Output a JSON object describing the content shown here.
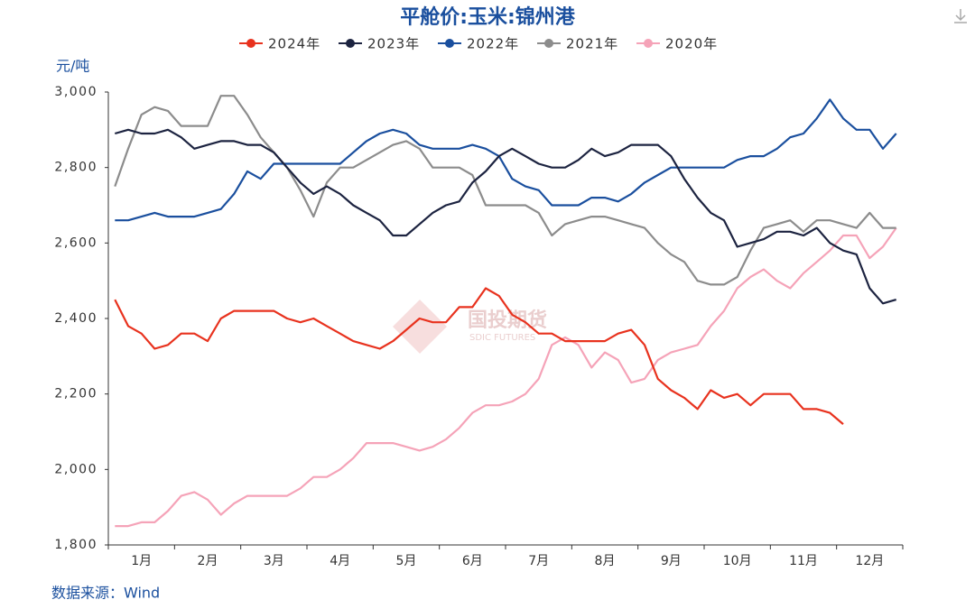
{
  "chart_data": {
    "type": "line",
    "title": "平舱价:玉米:锦州港",
    "y_label": "元/吨",
    "source": "数据来源：Wind",
    "watermark": [
      "国投期货",
      "SDIC FUTURES"
    ],
    "categories": [
      null,
      null,
      "1月",
      null,
      null,
      null,
      null,
      "2月",
      null,
      null,
      null,
      null,
      "3月",
      null,
      null,
      null,
      null,
      "4月",
      null,
      null,
      null,
      null,
      "5月",
      null,
      null,
      null,
      null,
      "6月",
      null,
      null,
      null,
      null,
      "7月",
      null,
      null,
      null,
      null,
      "8月",
      null,
      null,
      null,
      null,
      "9月",
      null,
      null,
      null,
      null,
      "10月",
      null,
      null,
      null,
      null,
      "11月",
      null,
      null,
      null,
      null,
      "12月",
      null,
      null
    ],
    "ylim": [
      1800,
      3000
    ],
    "yticks": [
      {
        "value": 1800,
        "label": "1,800"
      },
      {
        "value": 2000,
        "label": "2,000"
      },
      {
        "value": 2200,
        "label": "2,200"
      },
      {
        "value": 2400,
        "label": "2,400"
      },
      {
        "value": 2600,
        "label": "2,600"
      },
      {
        "value": 2800,
        "label": "2,800"
      },
      {
        "value": 3000,
        "label": "3,000"
      }
    ],
    "series": [
      {
        "name": "2024年",
        "color": "#e8321e",
        "values": [
          2450,
          2380,
          2360,
          2320,
          2330,
          2360,
          2360,
          2340,
          2400,
          2420,
          2420,
          2420,
          2420,
          2400,
          2390,
          2400,
          2380,
          2360,
          2340,
          2330,
          2320,
          2340,
          2370,
          2400,
          2390,
          2390,
          2430,
          2430,
          2480,
          2460,
          2410,
          2390,
          2360,
          2360,
          2340,
          2340,
          2340,
          2340,
          2360,
          2370,
          2330,
          2240,
          2210,
          2190,
          2160,
          2210,
          2190,
          2200,
          2170,
          2200,
          2200,
          2200,
          2160,
          2160,
          2150,
          2120,
          null,
          null,
          null,
          null
        ]
      },
      {
        "name": "2023年",
        "color": "#1c2340",
        "values": [
          2890,
          2900,
          2890,
          2890,
          2900,
          2880,
          2850,
          2860,
          2870,
          2870,
          2860,
          2860,
          2840,
          2800,
          2760,
          2730,
          2750,
          2730,
          2700,
          2680,
          2660,
          2620,
          2620,
          2650,
          2680,
          2700,
          2710,
          2760,
          2790,
          2830,
          2850,
          2830,
          2810,
          2800,
          2800,
          2820,
          2850,
          2830,
          2840,
          2860,
          2860,
          2860,
          2830,
          2770,
          2720,
          2680,
          2660,
          2590,
          2600,
          2610,
          2630,
          2630,
          2620,
          2640,
          2600,
          2580,
          2570,
          2480,
          2440,
          2450
        ]
      },
      {
        "name": "2022年",
        "color": "#1a4f9e",
        "values": [
          2660,
          2660,
          2670,
          2680,
          2670,
          2670,
          2670,
          2680,
          2690,
          2730,
          2790,
          2770,
          2810,
          2810,
          2810,
          2810,
          2810,
          2810,
          2840,
          2870,
          2890,
          2900,
          2890,
          2860,
          2850,
          2850,
          2850,
          2860,
          2850,
          2830,
          2770,
          2750,
          2740,
          2700,
          2700,
          2700,
          2720,
          2720,
          2710,
          2730,
          2760,
          2780,
          2800,
          2800,
          2800,
          2800,
          2800,
          2820,
          2830,
          2830,
          2850,
          2880,
          2890,
          2930,
          2980,
          2930,
          2900,
          2900,
          2850,
          2890
        ]
      },
      {
        "name": "2021年",
        "color": "#8c8c8c",
        "values": [
          2750,
          2850,
          2940,
          2960,
          2950,
          2910,
          2910,
          2910,
          2990,
          2990,
          2940,
          2880,
          2840,
          2800,
          2740,
          2670,
          2760,
          2800,
          2800,
          2820,
          2840,
          2860,
          2870,
          2850,
          2800,
          2800,
          2800,
          2780,
          2700,
          2700,
          2700,
          2700,
          2680,
          2620,
          2650,
          2660,
          2670,
          2670,
          2660,
          2650,
          2640,
          2600,
          2570,
          2550,
          2500,
          2490,
          2490,
          2510,
          2580,
          2640,
          2650,
          2660,
          2630,
          2660,
          2660,
          2650,
          2640,
          2680,
          2640,
          2640
        ]
      },
      {
        "name": "2020年",
        "color": "#f5a3b8",
        "values": [
          1850,
          1850,
          1860,
          1860,
          1890,
          1930,
          1940,
          1920,
          1880,
          1910,
          1930,
          1930,
          1930,
          1930,
          1950,
          1980,
          1980,
          2000,
          2030,
          2070,
          2070,
          2070,
          2060,
          2050,
          2060,
          2080,
          2110,
          2150,
          2170,
          2170,
          2180,
          2200,
          2240,
          2330,
          2350,
          2330,
          2270,
          2310,
          2290,
          2230,
          2240,
          2290,
          2310,
          2320,
          2330,
          2380,
          2420,
          2480,
          2510,
          2530,
          2500,
          2480,
          2520,
          2550,
          2580,
          2620,
          2620,
          2560,
          2590,
          2640
        ]
      }
    ]
  }
}
